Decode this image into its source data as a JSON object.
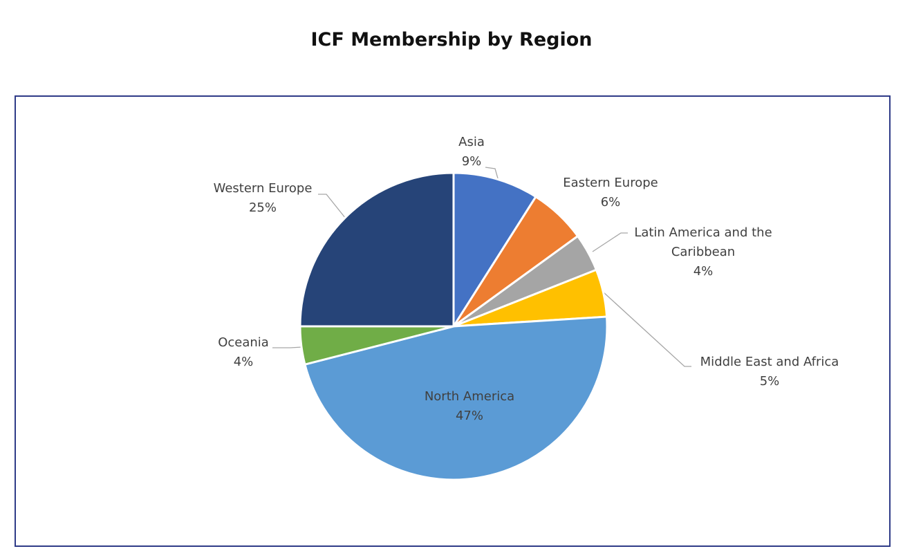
{
  "chart_data": {
    "type": "pie",
    "title": "ICF Membership by Region",
    "categories": [
      "Asia",
      "Eastern Europe",
      "Latin America and the Caribbean",
      "Middle East and Africa",
      "North America",
      "Oceania",
      "Western Europe"
    ],
    "values": [
      9,
      6,
      4,
      5,
      47,
      4,
      25
    ],
    "value_labels": [
      "9%",
      "6%",
      "4%",
      "5%",
      "47%",
      "4%",
      "25%"
    ],
    "colors": [
      "#4472c4",
      "#ed7d31",
      "#a5a5a5",
      "#ffc000",
      "#5b9bd5",
      "#70ad47",
      "#264478"
    ]
  }
}
